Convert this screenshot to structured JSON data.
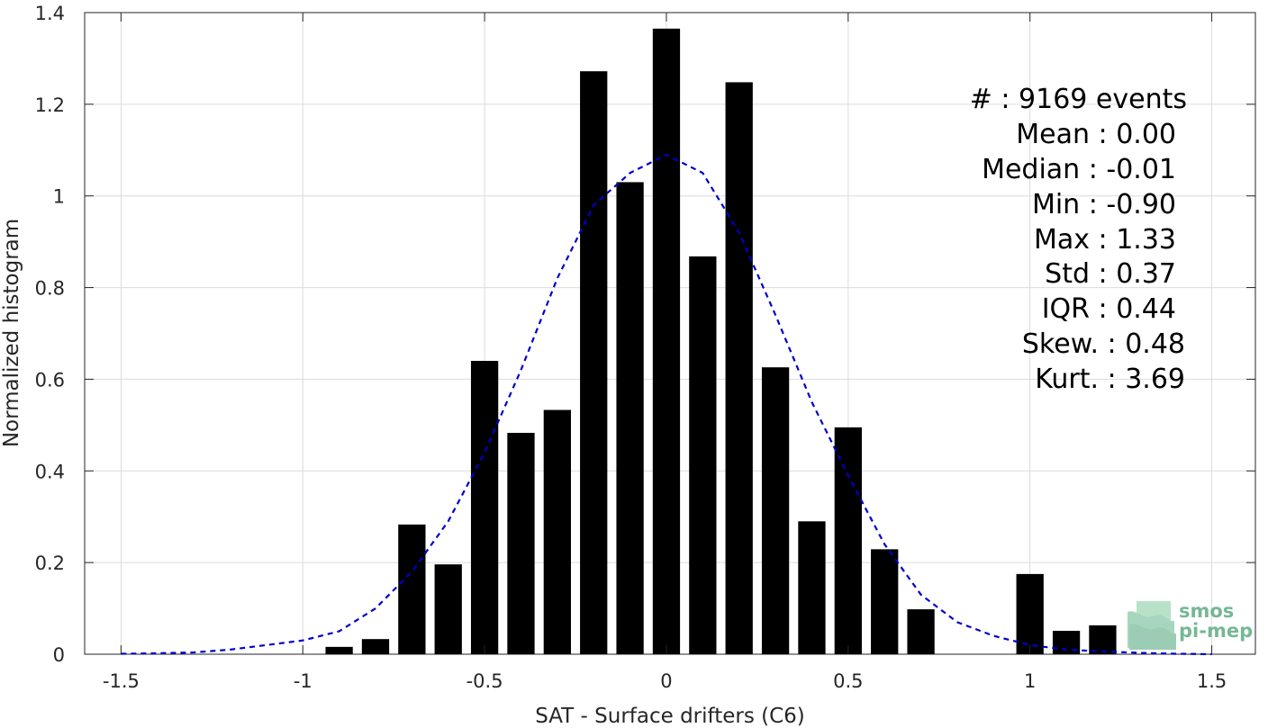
{
  "chart_data": {
    "type": "bar",
    "xlabel": "SAT - Surface drifters (C6)",
    "ylabel": "Normalized histogram",
    "xlim": [
      -1.6,
      1.62
    ],
    "ylim": [
      0,
      1.4
    ],
    "xticks": [
      "-1.5",
      "-1",
      "-0.5",
      "0",
      "0.5",
      "1",
      "1.5"
    ],
    "xtick_values": [
      -1.5,
      -1,
      -0.5,
      0,
      0.5,
      1,
      1.5
    ],
    "yticks": [
      "0",
      "0.2",
      "0.4",
      "0.6",
      "0.8",
      "1",
      "1.2",
      "1.4"
    ],
    "ytick_values": [
      0,
      0.2,
      0.4,
      0.6,
      0.8,
      1,
      1.2,
      1.4
    ],
    "grid": true,
    "bar_color": "#000000",
    "bin_width": 0.1,
    "bars": {
      "x": [
        -0.9,
        -0.8,
        -0.7,
        -0.6,
        -0.5,
        -0.4,
        -0.3,
        -0.2,
        -0.1,
        0.0,
        0.1,
        0.2,
        0.3,
        0.4,
        0.5,
        0.6,
        0.7,
        1.0,
        1.1,
        1.2
      ],
      "y": [
        0.016,
        0.033,
        0.283,
        0.196,
        0.64,
        0.483,
        0.533,
        1.272,
        1.03,
        1.365,
        0.868,
        1.248,
        0.626,
        0.29,
        0.495,
        0.229,
        0.098,
        0.175,
        0.051,
        0.063
      ]
    },
    "fit_curve": {
      "style": "dashed",
      "color": "#0000cc",
      "x": [
        -1.5,
        -1.4,
        -1.3,
        -1.2,
        -1.1,
        -1.0,
        -0.9,
        -0.8,
        -0.7,
        -0.6,
        -0.5,
        -0.4,
        -0.3,
        -0.2,
        -0.1,
        -0.05,
        0.0,
        0.05,
        0.1,
        0.2,
        0.3,
        0.4,
        0.5,
        0.6,
        0.7,
        0.8,
        0.9,
        1.0,
        1.1,
        1.2,
        1.3,
        1.4,
        1.5
      ],
      "y": [
        0.001,
        0.002,
        0.004,
        0.01,
        0.02,
        0.03,
        0.05,
        0.1,
        0.18,
        0.29,
        0.44,
        0.62,
        0.82,
        0.98,
        1.05,
        1.07,
        1.09,
        1.07,
        1.05,
        0.92,
        0.74,
        0.55,
        0.39,
        0.24,
        0.13,
        0.07,
        0.04,
        0.02,
        0.01,
        0.006,
        0.003,
        0.001,
        0.0
      ]
    }
  },
  "stats": [
    {
      "id": "events",
      "text": "#  : 9169 events"
    },
    {
      "id": "mean",
      "text": "Mean : 0.00"
    },
    {
      "id": "median",
      "text": "Median : -0.01"
    },
    {
      "id": "min",
      "text": "Min : -0.90"
    },
    {
      "id": "max",
      "text": "Max : 1.33"
    },
    {
      "id": "std",
      "text": "Std : 0.37"
    },
    {
      "id": "iqr",
      "text": "IQR : 0.44"
    },
    {
      "id": "skew",
      "text": "Skew. : 0.48"
    },
    {
      "id": "kurt",
      "text": "Kurt. : 3.69"
    }
  ],
  "logo": {
    "line1": "smos",
    "line2": "pi-mep",
    "color": "#3d9a6b"
  }
}
